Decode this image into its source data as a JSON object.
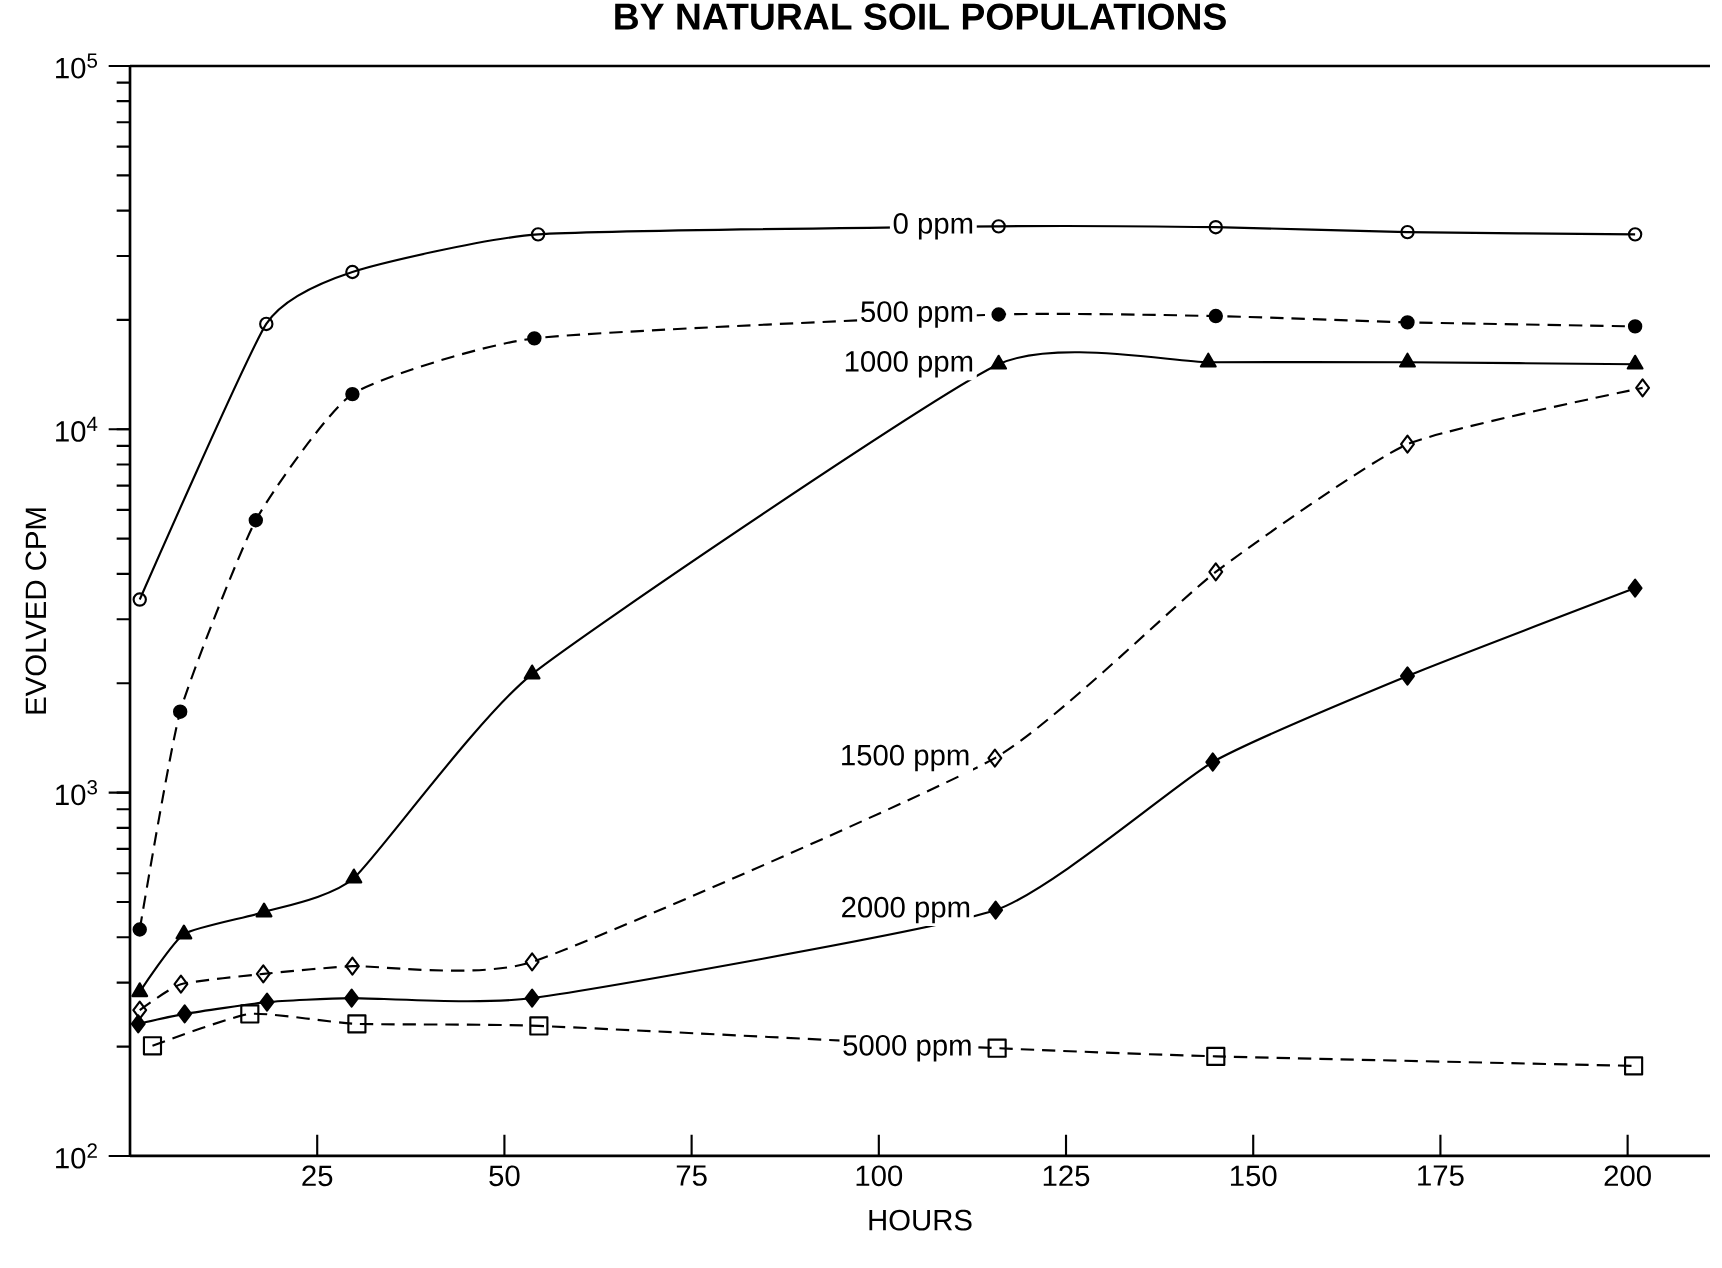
{
  "chart_data": {
    "type": "line",
    "title": "BY NATURAL SOIL POPULATIONS",
    "xlabel": "HOURS",
    "ylabel": "EVOLVED CPM",
    "log": "y",
    "xlim": [
      0,
      211
    ],
    "ylim": [
      100,
      100000
    ],
    "xticks": [
      25,
      50,
      75,
      100,
      125,
      150,
      175,
      200
    ],
    "yticks": [
      {
        "value": 100,
        "label": "10$^{2}$"
      },
      {
        "value": 1000,
        "label": "10$^{3}$"
      },
      {
        "value": 10000,
        "label": "10$^{4}$"
      },
      {
        "value": 100000,
        "label": "10$^{5}$"
      }
    ],
    "grid": false,
    "legend": false,
    "series": [
      {
        "name": "0 ppm",
        "color": "#000000",
        "marker": "circle",
        "line_style": "solid",
        "x": [
          1.3,
          18.2,
          29.7,
          54.5,
          116,
          145,
          170.6,
          201
        ],
        "values": [
          3400,
          19500,
          27100,
          34400,
          36200,
          36000,
          34900,
          34400
        ]
      },
      {
        "name": "500 ppm",
        "color": "#000000",
        "marker": "circle",
        "line_style": "dashed",
        "x": [
          1.3,
          6.7,
          16.8,
          29.7,
          54,
          116,
          145,
          170.6,
          201
        ],
        "values": [
          420,
          1670,
          5620,
          12500,
          17800,
          20700,
          20500,
          19700,
          19200
        ]
      },
      {
        "name": "1000 ppm",
        "color": "#000000",
        "marker": "triangle",
        "line_style": "solid",
        "x": [
          1.3,
          7.2,
          17.9,
          29.9,
          53.7,
          116,
          144,
          170.6,
          201
        ],
        "values": [
          283,
          408,
          469,
          582,
          2120,
          15100,
          15300,
          15300,
          15100
        ]
      },
      {
        "name": "1500 ppm",
        "color": "#000000",
        "marker": "diamond",
        "line_style": "dashed",
        "x": [
          1.3,
          6.8,
          17.8,
          29.7,
          53.7,
          115.5,
          145,
          170.6,
          202
        ],
        "values": [
          252,
          297,
          317,
          333,
          342,
          1245,
          4050,
          9100,
          13000
        ]
      },
      {
        "name": "2000 ppm",
        "color": "#000000",
        "marker": "diamond",
        "line_style": "solid",
        "x": [
          1.1,
          7.3,
          18.3,
          29.6,
          53.7,
          115.6,
          144.6,
          170.6,
          201
        ],
        "values": [
          231,
          246,
          265,
          272,
          272,
          475,
          1214,
          2094,
          3656
        ]
      },
      {
        "name": "5000 ppm",
        "color": "#000000",
        "marker": "square",
        "line_style": "dashed",
        "x": [
          3,
          16,
          30.3,
          54.6,
          115.8,
          145,
          200.8
        ],
        "values": [
          201,
          246,
          231,
          228,
          198,
          188,
          177
        ]
      }
    ]
  }
}
